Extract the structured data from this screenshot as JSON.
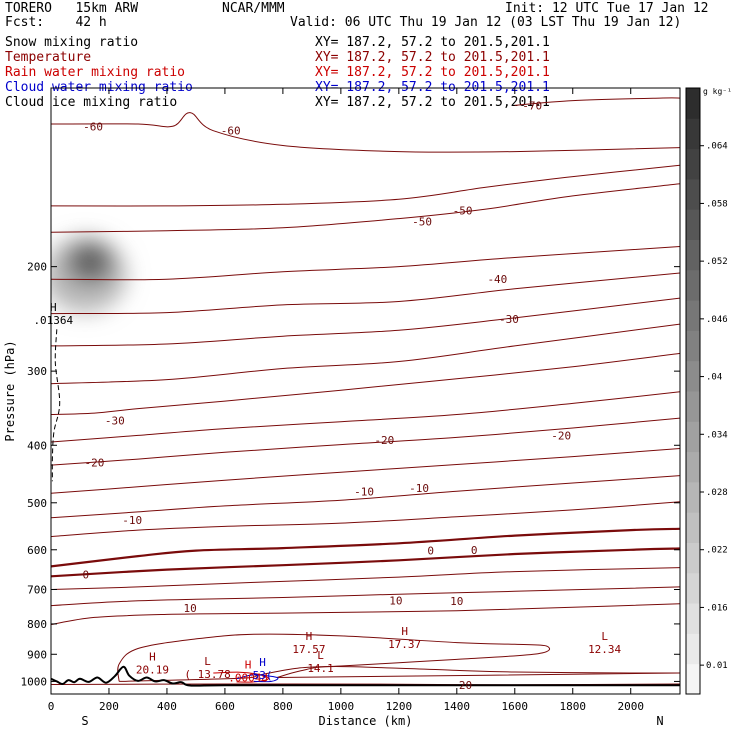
{
  "header": {
    "model": "TORERO   15km ARW",
    "center": "NCAR/MMM",
    "init": "Init: 12 UTC Tue 17 Jan 12",
    "fcst": "Fcst:    42 h",
    "valid": "Valid: 06 UTC Thu 19 Jan 12 (03 LST Thu 19 Jan 12)"
  },
  "legend": [
    {
      "label": "Snow mixing ratio",
      "color": "#000000",
      "coords": "XY= 187.2, 57.2 to 201.5,201.1"
    },
    {
      "label": "Temperature",
      "color": "#8b0000",
      "coords": "XY= 187.2, 57.2 to 201.5,201.1"
    },
    {
      "label": "Rain water mixing ratio",
      "color": "#cc0000",
      "coords": "XY= 187.2, 57.2 to 201.5,201.1"
    },
    {
      "label": "Cloud water mixing ratio",
      "color": "#0000cc",
      "coords": "XY= 187.2, 57.2 to 201.5,201.1"
    },
    {
      "label": "Cloud ice mixing ratio",
      "color": "#000000",
      "coords": "XY= 187.2, 57.2 to 201.5,201.1"
    }
  ],
  "chart_data": {
    "type": "contour",
    "xlabel": "Distance (km)",
    "ylabel": "Pressure (hPa)",
    "xlim": [
      0,
      2170
    ],
    "ylim": [
      1050,
      100
    ],
    "y_scale": "log",
    "x_ticks": [
      0,
      200,
      400,
      600,
      800,
      1000,
      1200,
      1400,
      1600,
      1800,
      2000
    ],
    "y_ticks": [
      200,
      300,
      400,
      500,
      600,
      700,
      800,
      900,
      1000
    ],
    "x_end_labels": {
      "left": "S",
      "right": "N"
    },
    "colorbar": {
      "unit": "g kg⁻¹",
      "ticks": [
        "0.01",
        ".016",
        ".022",
        ".028",
        ".034",
        ".04",
        ".046",
        ".052",
        ".058",
        ".064"
      ],
      "tick_values": [
        0.01,
        0.016,
        0.022,
        0.028,
        0.034,
        0.04,
        0.046,
        0.052,
        0.058,
        0.064
      ],
      "range": [
        0.007,
        0.07
      ]
    },
    "temperature_contours": [
      {
        "value": -70,
        "points": [
          [
            1600,
            107
          ],
          [
            1800,
            105
          ],
          [
            2100,
            104
          ],
          [
            2170,
            104
          ]
        ]
      },
      {
        "value": -60,
        "points": [
          [
            0,
            115
          ],
          [
            300,
            115
          ],
          [
            420,
            116
          ],
          [
            480,
            110
          ],
          [
            560,
            118
          ],
          [
            800,
            125
          ],
          [
            1200,
            128
          ],
          [
            1600,
            128
          ],
          [
            2170,
            126
          ]
        ]
      },
      {
        "value": -50,
        "points": [
          [
            0,
            158
          ],
          [
            400,
            158
          ],
          [
            800,
            157
          ],
          [
            1200,
            154
          ],
          [
            1500,
            147
          ],
          [
            1800,
            141
          ],
          [
            2170,
            135
          ]
        ]
      },
      {
        "value": -50,
        "points": [
          [
            0,
            175
          ],
          [
            400,
            174
          ],
          [
            800,
            172
          ],
          [
            1200,
            166
          ],
          [
            1500,
            160
          ],
          [
            1800,
            152
          ],
          [
            2170,
            145
          ]
        ]
      },
      {
        "value": -40,
        "points": [
          [
            0,
            210
          ],
          [
            400,
            210
          ],
          [
            800,
            204
          ],
          [
            1200,
            200
          ],
          [
            1600,
            193
          ],
          [
            2170,
            185
          ]
        ]
      },
      {
        "value": -40,
        "points": [
          [
            0,
            240
          ],
          [
            400,
            239
          ],
          [
            800,
            232
          ],
          [
            1200,
            229
          ],
          [
            1600,
            218
          ],
          [
            2170,
            205
          ]
        ]
      },
      {
        "value": -40,
        "points": [
          [
            0,
            272
          ],
          [
            400,
            270
          ],
          [
            800,
            262
          ],
          [
            1200,
            256
          ],
          [
            1600,
            244
          ],
          [
            2170,
            226
          ]
        ]
      },
      {
        "value": -30,
        "points": [
          [
            0,
            315
          ],
          [
            400,
            310
          ],
          [
            800,
            297
          ],
          [
            1200,
            289
          ],
          [
            1600,
            272
          ],
          [
            2170,
            250
          ]
        ]
      },
      {
        "value": -30,
        "points": [
          [
            0,
            355
          ],
          [
            150,
            353
          ],
          [
            300,
            347
          ],
          [
            600,
            337
          ],
          [
            1000,
            323
          ],
          [
            1400,
            309
          ],
          [
            1800,
            295
          ],
          [
            2170,
            280
          ]
        ]
      },
      {
        "value": -20,
        "points": [
          [
            0,
            395
          ],
          [
            300,
            385
          ],
          [
            600,
            375
          ],
          [
            1000,
            365
          ],
          [
            1400,
            355
          ],
          [
            1800,
            340
          ],
          [
            2170,
            325
          ]
        ]
      },
      {
        "value": -20,
        "points": [
          [
            0,
            432
          ],
          [
            300,
            422
          ],
          [
            600,
            411
          ],
          [
            1000,
            399
          ],
          [
            1400,
            388
          ],
          [
            1800,
            374
          ],
          [
            2170,
            360
          ]
        ]
      },
      {
        "value": -10,
        "points": [
          [
            0,
            482
          ],
          [
            300,
            470
          ],
          [
            600,
            458
          ],
          [
            1000,
            444
          ],
          [
            1400,
            431
          ],
          [
            1800,
            418
          ],
          [
            2170,
            405
          ]
        ]
      },
      {
        "value": -10,
        "points": [
          [
            0,
            530
          ],
          [
            300,
            518
          ],
          [
            600,
            506
          ],
          [
            1000,
            495
          ],
          [
            1400,
            478
          ],
          [
            1800,
            463
          ],
          [
            2170,
            450
          ]
        ]
      },
      {
        "value": -10,
        "points": [
          [
            0,
            570
          ],
          [
            300,
            556
          ],
          [
            600,
            548
          ],
          [
            1000,
            541
          ],
          [
            1400,
            528
          ],
          [
            1800,
            514
          ],
          [
            2170,
            498
          ]
        ]
      },
      {
        "value": 0,
        "points": [
          [
            0,
            640
          ],
          [
            300,
            615
          ],
          [
            500,
            602
          ],
          [
            800,
            596
          ],
          [
            1200,
            585
          ],
          [
            1600,
            568
          ],
          [
            2000,
            556
          ],
          [
            2170,
            553
          ]
        ]
      },
      {
        "value": 0,
        "points": [
          [
            0,
            665
          ],
          [
            400,
            648
          ],
          [
            800,
            637
          ],
          [
            1200,
            625
          ],
          [
            1600,
            610
          ],
          [
            2000,
            600
          ],
          [
            2170,
            597
          ]
        ]
      },
      {
        "value": 10,
        "points": [
          [
            0,
            700
          ],
          [
            300,
            693
          ],
          [
            700,
            681
          ],
          [
            1200,
            667
          ],
          [
            1600,
            653
          ],
          [
            2170,
            643
          ]
        ]
      },
      {
        "value": 10,
        "points": [
          [
            0,
            745
          ],
          [
            250,
            733
          ],
          [
            500,
            727
          ],
          [
            800,
            722
          ],
          [
            1200,
            713
          ],
          [
            1600,
            705
          ],
          [
            2170,
            693
          ]
        ]
      },
      {
        "value": 10,
        "points": [
          [
            0,
            802
          ],
          [
            150,
            780
          ],
          [
            400,
            771
          ],
          [
            700,
            768
          ],
          [
            1000,
            765
          ],
          [
            1400,
            760
          ],
          [
            1800,
            750
          ],
          [
            2170,
            740
          ]
        ]
      },
      {
        "value": 20,
        "points": [
          [
            0,
            1012
          ],
          [
            600,
            1010
          ],
          [
            1200,
            1011
          ],
          [
            1600,
            1013
          ],
          [
            2170,
            1010
          ]
        ]
      }
    ],
    "temperature_closed": [
      {
        "value": 18,
        "points": [
          [
            235,
            1000
          ],
          [
            235,
            935
          ],
          [
            300,
            880
          ],
          [
            500,
            848
          ],
          [
            700,
            833
          ],
          [
            1000,
            838
          ],
          [
            1400,
            860
          ],
          [
            1600,
            866
          ],
          [
            1710,
            872
          ],
          [
            1680,
            898
          ],
          [
            1400,
            918
          ],
          [
            1200,
            930
          ],
          [
            1000,
            942
          ],
          [
            850,
            950
          ],
          [
            720,
            975
          ],
          [
            650,
            988
          ]
        ]
      },
      {
        "value": 14,
        "points": [
          [
            780,
            985
          ],
          [
            860,
            960
          ],
          [
            960,
            944
          ],
          [
            1200,
            950
          ],
          [
            1400,
            958
          ],
          [
            1600,
            964
          ],
          [
            2000,
            968
          ],
          [
            2170,
            968
          ]
        ]
      }
    ],
    "snow_contours": [
      {
        "points": [
          [
            20,
            255
          ],
          [
            15,
            290
          ],
          [
            30,
            340
          ],
          [
            10,
            380
          ],
          [
            5,
            420
          ],
          [
            5,
            460
          ]
        ]
      }
    ],
    "rain_contours": [
      {
        "points": [
          [
            560,
            968
          ],
          [
            650,
            965
          ],
          [
            720,
            974
          ],
          [
            750,
            990
          ],
          [
            700,
            1002
          ],
          [
            640,
            1002
          ]
        ]
      }
    ],
    "cloud_water_contours": [
      {
        "points": [
          [
            640,
            990
          ],
          [
            700,
            975
          ],
          [
            780,
            985
          ],
          [
            760,
            1000
          ],
          [
            700,
            1000
          ]
        ]
      }
    ],
    "labels": [
      {
        "x": 1660,
        "y": 107,
        "text": "-70"
      },
      {
        "x": 145,
        "y": 116,
        "text": "-60"
      },
      {
        "x": 620,
        "y": 118,
        "text": "-60"
      },
      {
        "x": 1280,
        "y": 168,
        "text": "-50"
      },
      {
        "x": 1420,
        "y": 161,
        "text": "-50"
      },
      {
        "x": 1540,
        "y": 210,
        "text": "-40"
      },
      {
        "x": 1580,
        "y": 245,
        "text": "-30"
      },
      {
        "x": 220,
        "y": 363,
        "text": "-30"
      },
      {
        "x": 150,
        "y": 428,
        "text": "-20"
      },
      {
        "x": 1150,
        "y": 392,
        "text": "-20"
      },
      {
        "x": 1760,
        "y": 385,
        "text": "-20"
      },
      {
        "x": 1080,
        "y": 479,
        "text": "-10"
      },
      {
        "x": 1270,
        "y": 472,
        "text": "-10"
      },
      {
        "x": 280,
        "y": 535,
        "text": "-10"
      },
      {
        "x": 120,
        "y": 660,
        "text": "0"
      },
      {
        "x": 1310,
        "y": 602,
        "text": "0"
      },
      {
        "x": 1460,
        "y": 600,
        "text": "0"
      },
      {
        "x": 480,
        "y": 752,
        "text": "10"
      },
      {
        "x": 1190,
        "y": 730,
        "text": "10"
      },
      {
        "x": 1400,
        "y": 732,
        "text": "10"
      },
      {
        "x": 1430,
        "y": 1014,
        "text": "20"
      }
    ],
    "extrema": [
      {
        "x": 8,
        "y": 245,
        "mark": "H",
        "value": ".01364",
        "color": "#000000"
      },
      {
        "x": 350,
        "y": 952,
        "mark": "H",
        "value": "20.19",
        "color": "#8b0000"
      },
      {
        "x": 540,
        "y": 968,
        "mark": "L",
        "value": "( 13.78",
        "color": "#8b0000"
      },
      {
        "x": 680,
        "y": 982,
        "mark": "H",
        "value": ".00048",
        "color": "#cc0000"
      },
      {
        "x": 730,
        "y": 972,
        "mark": "H",
        "value": "53(",
        "color": "#0000cc"
      },
      {
        "x": 890,
        "y": 878,
        "mark": "H",
        "value": "17.57",
        "color": "#8b0000"
      },
      {
        "x": 930,
        "y": 945,
        "mark": "L",
        "value": "14.1",
        "color": "#8b0000"
      },
      {
        "x": 1220,
        "y": 862,
        "mark": "H",
        "value": "17.37",
        "color": "#8b0000"
      },
      {
        "x": 1910,
        "y": 878,
        "mark": "L",
        "value": "12.34",
        "color": "#8b0000"
      }
    ],
    "terrain_surface_hpa": [
      [
        0,
        990
      ],
      [
        20,
        1000
      ],
      [
        40,
        1010
      ],
      [
        60,
        995
      ],
      [
        80,
        1003
      ],
      [
        100,
        990
      ],
      [
        130,
        1002
      ],
      [
        160,
        985
      ],
      [
        190,
        1005
      ],
      [
        220,
        980
      ],
      [
        250,
        945
      ],
      [
        270,
        978
      ],
      [
        300,
        998
      ],
      [
        330,
        985
      ],
      [
        360,
        1000
      ],
      [
        390,
        995
      ],
      [
        420,
        1008
      ],
      [
        450,
        1003
      ],
      [
        480,
        1016
      ],
      [
        600,
        1015
      ],
      [
        900,
        1015
      ],
      [
        2170,
        1015
      ]
    ]
  }
}
